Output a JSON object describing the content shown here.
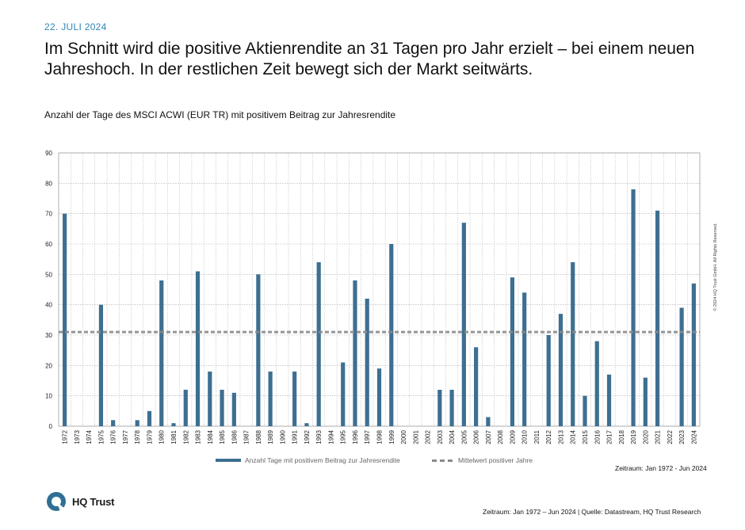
{
  "header": {
    "date": "22. JULI 2024",
    "headline": "Im Schnitt wird die positive Aktienrendite an 31 Tagen pro Jahr erzielt – bei einem neuen Jahreshoch. In der restlichen Zeit bewegt sich der Markt seitwärts.",
    "subtitle": "Anzahl der Tage des MSCI ACWI (EUR TR) mit positivem Beitrag zur Jahresrendite"
  },
  "chart_data": {
    "type": "bar",
    "categories": [
      "1972",
      "1973",
      "1974",
      "1975",
      "1976",
      "1977",
      "1978",
      "1979",
      "1980",
      "1981",
      "1982",
      "1983",
      "1984",
      "1985",
      "1986",
      "1987",
      "1988",
      "1989",
      "1990",
      "1991",
      "1992",
      "1993",
      "1994",
      "1995",
      "1996",
      "1997",
      "1998",
      "1999",
      "2000",
      "2001",
      "2002",
      "2003",
      "2004",
      "2005",
      "2006",
      "2007",
      "2008",
      "2009",
      "2010",
      "2011",
      "2012",
      "2013",
      "2014",
      "2015",
      "2016",
      "2017",
      "2018",
      "2019",
      "2020",
      "2021",
      "2022",
      "2023",
      "2024"
    ],
    "series": [
      {
        "name": "Anzahl Tage mit positivem Beitrag zur Jahresrendite",
        "values": [
          70,
          0,
          0,
          40,
          2,
          0,
          2,
          5,
          48,
          1,
          12,
          51,
          18,
          12,
          11,
          0,
          50,
          18,
          0,
          18,
          1,
          54,
          0,
          21,
          48,
          42,
          19,
          60,
          0,
          0,
          0,
          12,
          12,
          67,
          26,
          3,
          0,
          49,
          44,
          0,
          30,
          37,
          54,
          10,
          28,
          17,
          0,
          78,
          16,
          71,
          0,
          39,
          47
        ],
        "color": "#3d6f91"
      },
      {
        "name": "Mittelwert positiver Jahre",
        "type": "hline",
        "value": 31,
        "color": "#8a8a8a"
      }
    ],
    "ylim": [
      0,
      90
    ],
    "yticks": [
      0,
      10,
      20,
      30,
      40,
      50,
      60,
      70,
      80,
      90
    ],
    "grid": true,
    "legend_position": "bottom",
    "xlabel": "",
    "ylabel": ""
  },
  "legend": {
    "bar_label": "Anzahl Tage mit positivem Beitrag zur Jahresrendite",
    "mean_label": "Mittelwert positiver Jahre"
  },
  "copyright": "© 2024 HQ Trust GmbH. All Rights Reserved.",
  "period_note": "Zeitraum: Jan 1972 - Jun 2024",
  "brand": {
    "name": "HQ Trust",
    "color": "#2f6f93"
  },
  "footer": "Zeitraum: Jan 1972 – Jun 2024 | Quelle: Datastream, HQ Trust Research"
}
